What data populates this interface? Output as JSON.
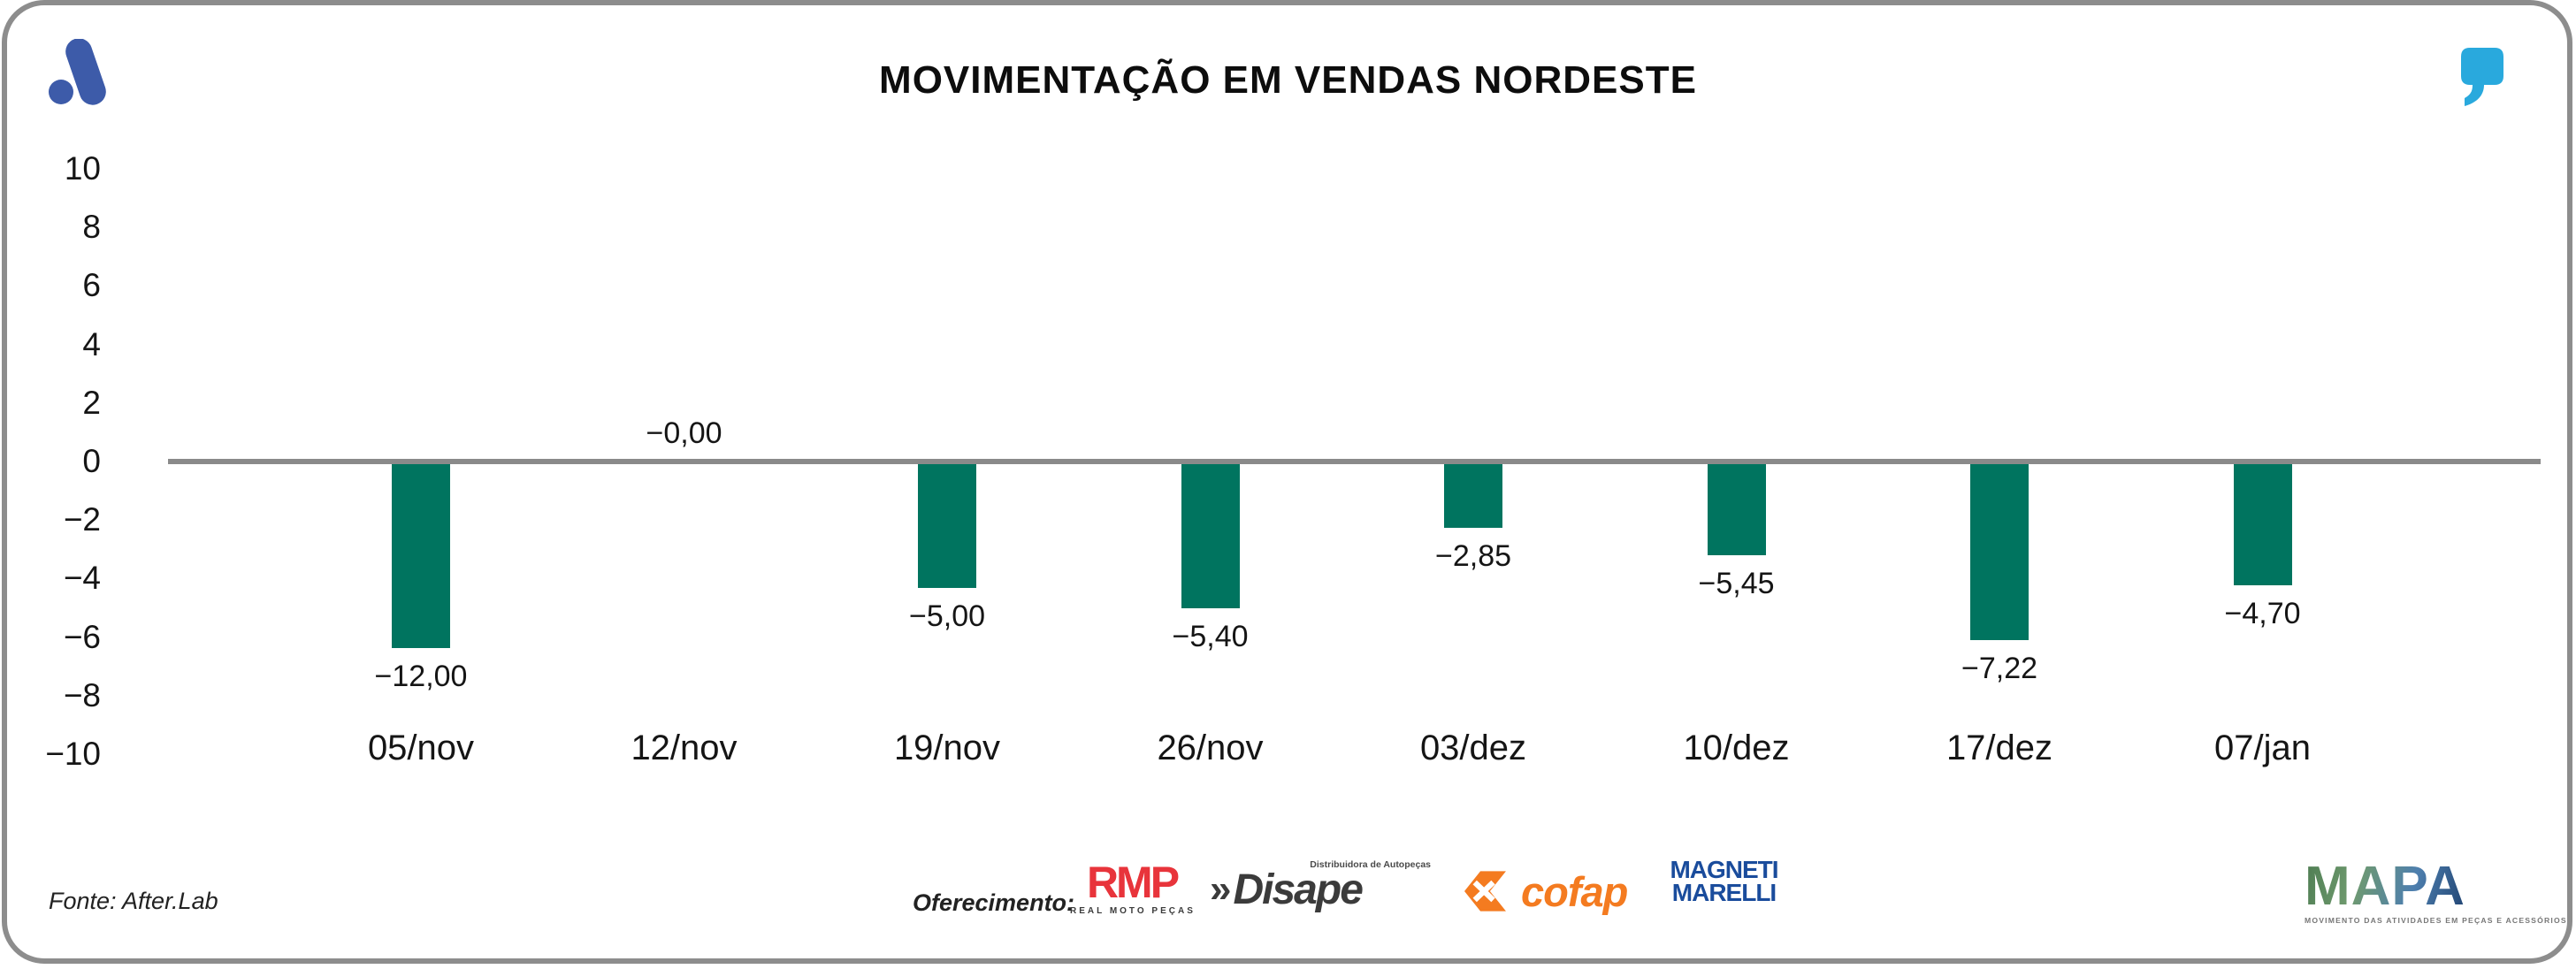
{
  "header": {
    "title": "MOVIMENTAÇÃO EM VENDAS NORDESTE"
  },
  "footer": {
    "source_note": "Fonte: After.Lab",
    "sponsor_label": "Oferecimento:"
  },
  "chart_data": {
    "type": "bar",
    "title": "MOVIMENTAÇÃO EM VENDAS NORDESTE",
    "categories": [
      "05/nov",
      "12/nov",
      "19/nov",
      "26/nov",
      "03/dez",
      "10/dez",
      "17/dez",
      "07/jan"
    ],
    "values": [
      -12.0,
      0.0,
      -5.0,
      -5.4,
      -2.85,
      -5.45,
      -7.22,
      -4.7
    ],
    "value_labels": [
      "−12,00",
      "−0,00",
      "−5,00",
      "−5,40",
      "−2,85",
      "−5,45",
      "−7,22",
      "−4,70"
    ],
    "ylim": [
      -10,
      10
    ],
    "yticks": [
      10,
      8,
      6,
      4,
      2,
      0,
      -2,
      -4,
      -6,
      -8,
      -10
    ],
    "ytick_labels": [
      "10",
      "8",
      "6",
      "4",
      "2",
      "0",
      "−2",
      "−4",
      "−6",
      "−8",
      "−10"
    ],
    "bar_color": "#00745F",
    "zero_line_color": "#8A8A8A",
    "grid": false,
    "legend": false,
    "rendered_bar_depths_axis_units": [
      6.28,
      0,
      4.23,
      4.92,
      2.18,
      3.11,
      6.01,
      4.14
    ]
  },
  "logos": {
    "afterlab": {
      "color": "#3D5BA9"
    },
    "quote": {
      "color": "#29A9DD"
    },
    "rmp": {
      "wordmark": "RMP",
      "caption": "REAL MOTO PEÇAS",
      "color": "#E8343B"
    },
    "disape": {
      "chevrons": "»",
      "wordmark": "Disape",
      "caption": "Distribuidora de Autopeças",
      "color": "#3B3B3B"
    },
    "cofap": {
      "wordmark": "cofap",
      "color": "#F47B20"
    },
    "magneti_marelli": {
      "line1": "MAGNETI",
      "line2": "MARELLI",
      "color": "#1A4C9C"
    },
    "mapa": {
      "wordmark": "MAPA",
      "caption": "MOVIMENTO DAS ATIVIDADES EM PEÇAS E ACESSÓRIOS"
    }
  }
}
